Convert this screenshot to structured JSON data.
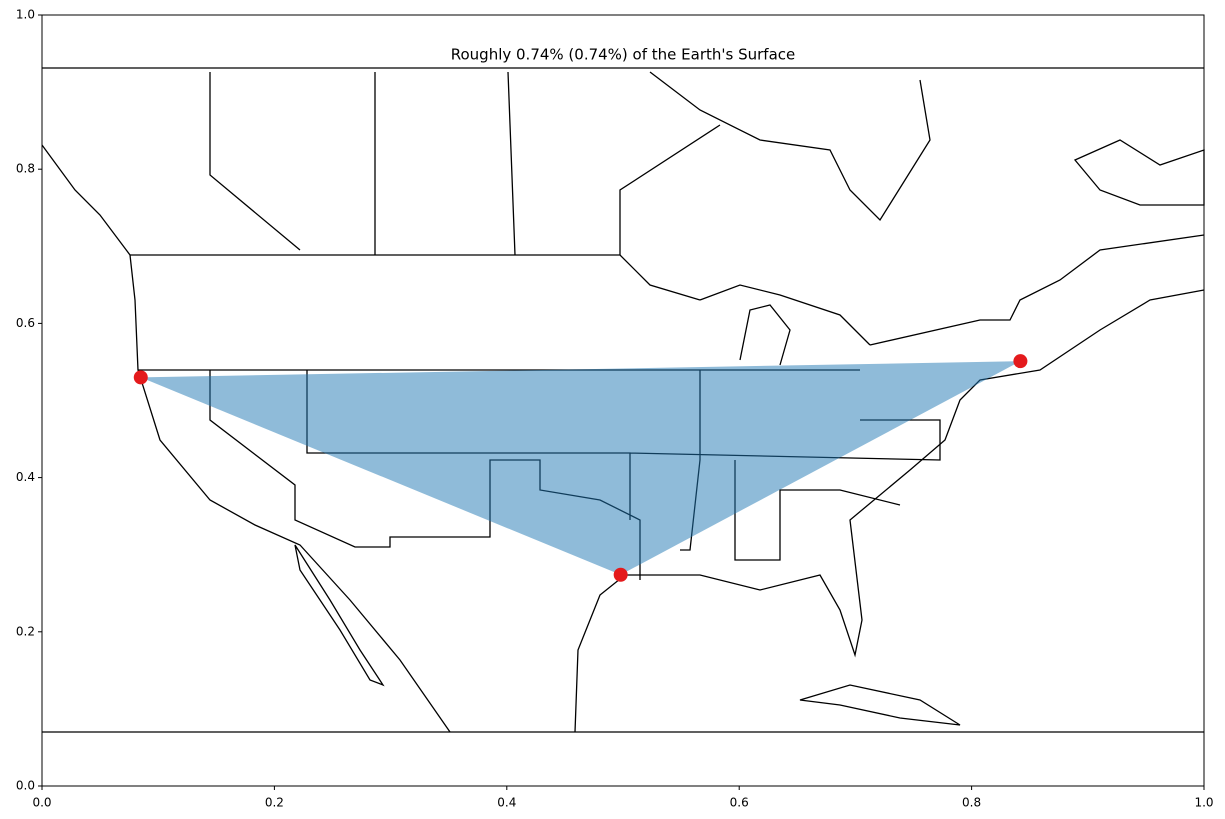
{
  "chart_data": {
    "type": "scatter",
    "title": "Roughly 0.74% (0.74%) of the Earth's Surface",
    "x": [
      0.085,
      0.842,
      0.498
    ],
    "values": [
      0.53,
      0.551,
      0.274
    ],
    "color": "#e41a1c",
    "fill_color": "#1f77b4",
    "xlim": [
      0,
      1
    ],
    "ylim": [
      0,
      1
    ],
    "xticks": [
      {
        "value": 0,
        "label": "0.0"
      },
      0.2,
      0.4,
      0.6,
      0.8,
      {
        "value": 1,
        "label": "1.0"
      }
    ],
    "yticks": [
      {
        "value": 0,
        "label": "0.0"
      },
      0.2,
      0.4,
      0.6,
      0.8,
      {
        "value": 1,
        "label": "1.0"
      }
    ]
  }
}
